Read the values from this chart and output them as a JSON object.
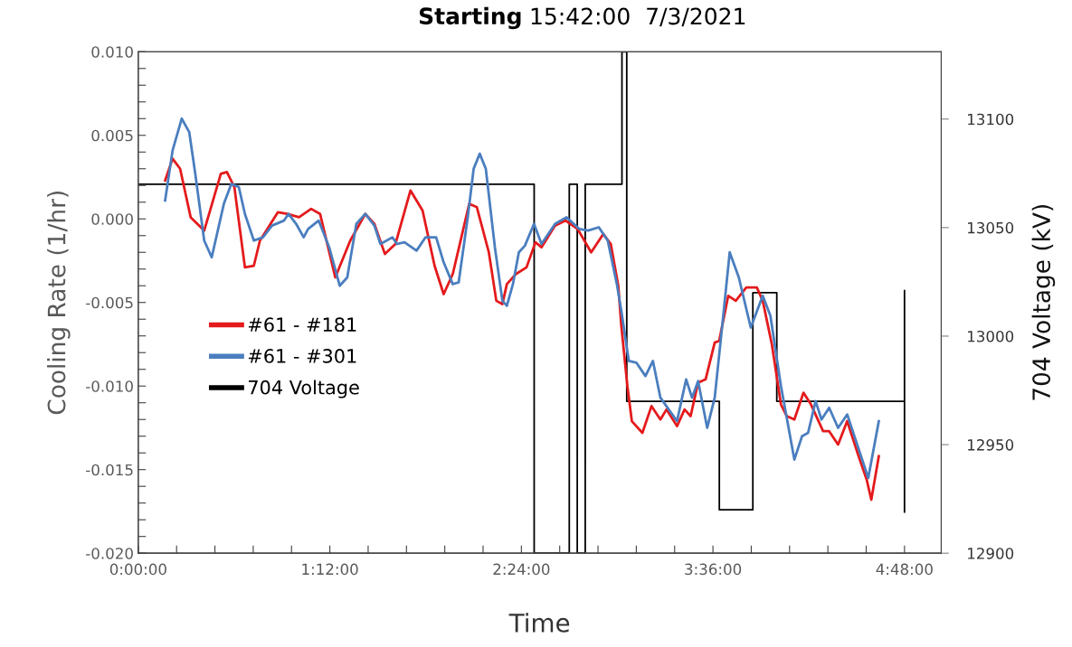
{
  "chart_data": {
    "type": "line",
    "title": "Starting 15:42:00  7/3/2021",
    "xlabel": "Time",
    "ylabel": "Cooling Rate (1/hr)",
    "y2label": "704 Voltage (kV)",
    "xlim": [
      0,
      5.03
    ],
    "ylim": [
      -0.02,
      0.01
    ],
    "y2lim": [
      12900,
      13131
    ],
    "xticks": [
      {
        "value": 0,
        "label": "0:00:00"
      },
      {
        "value": 0.24,
        "label": null
      },
      {
        "value": 0.48,
        "label": null
      },
      {
        "value": 0.72,
        "label": null
      },
      {
        "value": 0.96,
        "label": null
      },
      {
        "value": 1.2,
        "label": "1:12:00"
      },
      {
        "value": 1.44,
        "label": null
      },
      {
        "value": 1.68,
        "label": null
      },
      {
        "value": 1.92,
        "label": null
      },
      {
        "value": 2.16,
        "label": null
      },
      {
        "value": 2.4,
        "label": "2:24:00"
      },
      {
        "value": 2.64,
        "label": null
      },
      {
        "value": 2.88,
        "label": null
      },
      {
        "value": 3.12,
        "label": null
      },
      {
        "value": 3.36,
        "label": null
      },
      {
        "value": 3.6,
        "label": "3:36:00"
      },
      {
        "value": 3.84,
        "label": null
      },
      {
        "value": 4.08,
        "label": null
      },
      {
        "value": 4.32,
        "label": null
      },
      {
        "value": 4.56,
        "label": null
      },
      {
        "value": 4.8,
        "label": "4:48:00"
      }
    ],
    "yticks": [
      {
        "value": -0.02,
        "label": "-0.020"
      },
      {
        "value": -0.019,
        "label": null
      },
      {
        "value": -0.018,
        "label": null
      },
      {
        "value": -0.017,
        "label": null
      },
      {
        "value": -0.016,
        "label": null
      },
      {
        "value": -0.015,
        "label": "-0.015"
      },
      {
        "value": -0.014,
        "label": null
      },
      {
        "value": -0.013,
        "label": null
      },
      {
        "value": -0.012,
        "label": null
      },
      {
        "value": -0.011,
        "label": null
      },
      {
        "value": -0.01,
        "label": "-0.010"
      },
      {
        "value": -0.009,
        "label": null
      },
      {
        "value": -0.008,
        "label": null
      },
      {
        "value": -0.007,
        "label": null
      },
      {
        "value": -0.006,
        "label": null
      },
      {
        "value": -0.005,
        "label": "-0.005"
      },
      {
        "value": -0.004,
        "label": null
      },
      {
        "value": -0.003,
        "label": null
      },
      {
        "value": -0.002,
        "label": null
      },
      {
        "value": -0.001,
        "label": null
      },
      {
        "value": 0,
        "label": "0.000"
      },
      {
        "value": 0.001,
        "label": null
      },
      {
        "value": 0.002,
        "label": null
      },
      {
        "value": 0.003,
        "label": null
      },
      {
        "value": 0.004,
        "label": null
      },
      {
        "value": 0.005,
        "label": "0.005"
      },
      {
        "value": 0.006,
        "label": null
      },
      {
        "value": 0.007,
        "label": null
      },
      {
        "value": 0.008,
        "label": null
      },
      {
        "value": 0.009,
        "label": null
      },
      {
        "value": 0.01,
        "label": "0.010"
      }
    ],
    "y2ticks": [
      12900,
      12950,
      13000,
      13050,
      13100
    ],
    "grid": false,
    "legend": "center left",
    "marker": "none",
    "line_style": "solid",
    "series": [
      {
        "name": "704 Voltage",
        "color": "#000000",
        "axis": "y2",
        "x": [
          0,
          2.48,
          2.48,
          2.7,
          2.7,
          2.75,
          2.75,
          2.8,
          2.8,
          3.03,
          3.03,
          3.06,
          3.06,
          3.64,
          3.64,
          3.85,
          3.85,
          4.0,
          4.0,
          4.8,
          4.8,
          4.8
        ],
        "values": [
          13070,
          13070,
          12900,
          12900,
          13070,
          13070,
          12900,
          12900,
          13070,
          13070,
          13131,
          13131,
          12970,
          12970,
          12920,
          12920,
          13020,
          13020,
          12970,
          12970,
          13021,
          12919
        ]
      },
      {
        "name": "#61 - #181",
        "color": "#e41a1c",
        "x": [
          0.168,
          0.215,
          0.262,
          0.328,
          0.413,
          0.517,
          0.555,
          0.602,
          0.668,
          0.724,
          0.762,
          0.875,
          0.932,
          1.007,
          1.083,
          1.139,
          1.234,
          1.328,
          1.422,
          1.479,
          1.545,
          1.611,
          1.705,
          1.781,
          1.856,
          1.913,
          1.97,
          2.073,
          2.121,
          2.196,
          2.243,
          2.281,
          2.309,
          2.366,
          2.432,
          2.488,
          2.526,
          2.611,
          2.677,
          2.752,
          2.837,
          2.913,
          2.96,
          3.007,
          3.026,
          3.064,
          3.092,
          3.158,
          3.215,
          3.271,
          3.309,
          3.375,
          3.422,
          3.46,
          3.507,
          3.554,
          3.611,
          3.639,
          3.696,
          3.743,
          3.809,
          3.875,
          3.912,
          3.969,
          4.026,
          4.063,
          4.11,
          4.167,
          4.214,
          4.29,
          4.328,
          4.384,
          4.441,
          4.516,
          4.563,
          4.592,
          4.639
        ],
        "values": [
          0.0023,
          0.0036,
          0.003,
          0.0001,
          -0.0007,
          0.0027,
          0.0028,
          0.0019,
          -0.0029,
          -0.0028,
          -0.0013,
          0.0004,
          0.0003,
          0.0001,
          0.0006,
          0.0003,
          -0.0035,
          -0.0013,
          0.0003,
          -0.0003,
          -0.0021,
          -0.0015,
          0.0017,
          0.0005,
          -0.0028,
          -0.0045,
          -0.0033,
          0.0009,
          0.0007,
          -0.002,
          -0.0049,
          -0.0051,
          -0.0039,
          -0.0033,
          -0.0029,
          -0.0014,
          -0.0017,
          -0.0004,
          -0.0001,
          -0.0006,
          -0.002,
          -0.0009,
          -0.0015,
          -0.004,
          -0.0064,
          -0.01,
          -0.0121,
          -0.0128,
          -0.0112,
          -0.012,
          -0.0114,
          -0.0124,
          -0.0114,
          -0.0118,
          -0.0098,
          -0.0096,
          -0.0074,
          -0.0073,
          -0.0046,
          -0.0049,
          -0.0041,
          -0.0041,
          -0.0049,
          -0.0075,
          -0.0111,
          -0.0118,
          -0.012,
          -0.0104,
          -0.0111,
          -0.0127,
          -0.0127,
          -0.0135,
          -0.0121,
          -0.0143,
          -0.0156,
          -0.0168,
          -0.0142
        ]
      },
      {
        "name": "#61 - #301",
        "color": "#4a7ebf",
        "x": [
          0.168,
          0.215,
          0.272,
          0.319,
          0.357,
          0.413,
          0.46,
          0.536,
          0.583,
          0.63,
          0.668,
          0.724,
          0.781,
          0.838,
          0.913,
          0.941,
          0.989,
          1.036,
          1.064,
          1.13,
          1.196,
          1.262,
          1.309,
          1.366,
          1.422,
          1.479,
          1.517,
          1.592,
          1.62,
          1.668,
          1.743,
          1.8,
          1.866,
          1.913,
          1.97,
          2.007,
          2.064,
          2.101,
          2.139,
          2.177,
          2.234,
          2.281,
          2.309,
          2.347,
          2.384,
          2.422,
          2.479,
          2.526,
          2.611,
          2.683,
          2.762,
          2.818,
          2.885,
          2.941,
          2.998,
          3.026,
          3.073,
          3.12,
          3.177,
          3.224,
          3.271,
          3.375,
          3.432,
          3.469,
          3.507,
          3.564,
          3.611,
          3.658,
          3.705,
          3.762,
          3.837,
          3.912,
          3.96,
          4.026,
          4.11,
          4.158,
          4.196,
          4.243,
          4.28,
          4.328,
          4.384,
          4.441,
          4.573,
          4.639
        ],
        "values": [
          0.0011,
          0.0041,
          0.006,
          0.0052,
          0.0027,
          -0.0013,
          -0.0023,
          0.0009,
          0.0021,
          0.0019,
          0.0003,
          -0.0013,
          -0.0011,
          -0.0004,
          -0.0001,
          0.0003,
          -0.0003,
          -0.0011,
          -0.0006,
          -0.0001,
          -0.0017,
          -0.004,
          -0.0035,
          -0.0003,
          0.0003,
          -0.0004,
          -0.0015,
          -0.0011,
          -0.0015,
          -0.0014,
          -0.0019,
          -0.0011,
          -0.0011,
          -0.0026,
          -0.0039,
          -0.0038,
          0.0001,
          0.003,
          0.0039,
          0.003,
          -0.0017,
          -0.0049,
          -0.0052,
          -0.0039,
          -0.002,
          -0.0016,
          -0.0003,
          -0.0015,
          -0.0003,
          0.0001,
          -0.0006,
          -0.0007,
          -0.0005,
          -0.0013,
          -0.0039,
          -0.0055,
          -0.0085,
          -0.0086,
          -0.0094,
          -0.0085,
          -0.0107,
          -0.0121,
          -0.0096,
          -0.0107,
          -0.0097,
          -0.0125,
          -0.0107,
          -0.0064,
          -0.002,
          -0.0035,
          -0.0065,
          -0.0046,
          -0.0058,
          -0.01,
          -0.0144,
          -0.013,
          -0.0128,
          -0.0109,
          -0.012,
          -0.0113,
          -0.0125,
          -0.0117,
          -0.0155,
          -0.0121
        ]
      }
    ]
  }
}
